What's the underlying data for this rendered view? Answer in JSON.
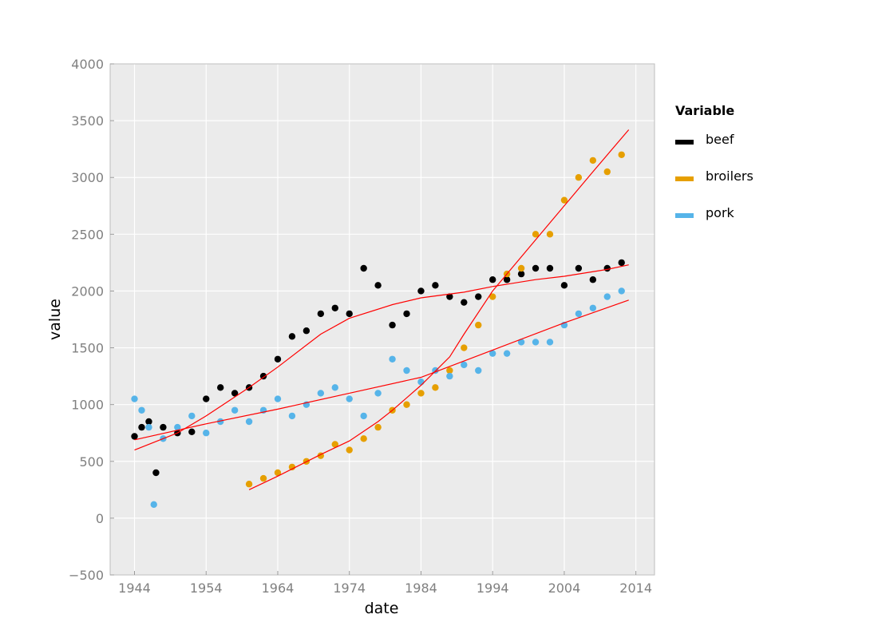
{
  "chart_data": {
    "type": "scatter",
    "title": "",
    "xlabel": "date",
    "ylabel": "value",
    "xlim": [
      1940.6,
      2016.6
    ],
    "ylim": [
      -500,
      4000
    ],
    "xticks": [
      1944,
      1954,
      1964,
      1974,
      1984,
      1994,
      2004,
      2014
    ],
    "yticks": [
      -500,
      0,
      500,
      1000,
      1500,
      2000,
      2500,
      3000,
      3500,
      4000
    ],
    "ytick_labels": [
      "−500",
      "0",
      "500",
      "1000",
      "1500",
      "2000",
      "2500",
      "3000",
      "3500",
      "4000"
    ],
    "grid": true,
    "legend": {
      "title": "Variable",
      "placement": "outside-right"
    },
    "trend_color": "#ff0000",
    "series": [
      {
        "name": "beef",
        "color": "#000000",
        "approx_points": [
          [
            1944,
            720
          ],
          [
            1945,
            800
          ],
          [
            1946,
            850
          ],
          [
            1947,
            400
          ],
          [
            1948,
            800
          ],
          [
            1950,
            750
          ],
          [
            1952,
            760
          ],
          [
            1954,
            1050
          ],
          [
            1956,
            1150
          ],
          [
            1958,
            1100
          ],
          [
            1960,
            1150
          ],
          [
            1962,
            1250
          ],
          [
            1964,
            1400
          ],
          [
            1966,
            1600
          ],
          [
            1968,
            1650
          ],
          [
            1970,
            1800
          ],
          [
            1972,
            1850
          ],
          [
            1974,
            1800
          ],
          [
            1976,
            2200
          ],
          [
            1978,
            2050
          ],
          [
            1980,
            1700
          ],
          [
            1982,
            1800
          ],
          [
            1984,
            2000
          ],
          [
            1986,
            2050
          ],
          [
            1988,
            1950
          ],
          [
            1990,
            1900
          ],
          [
            1992,
            1950
          ],
          [
            1994,
            2100
          ],
          [
            1996,
            2100
          ],
          [
            1998,
            2150
          ],
          [
            2000,
            2200
          ],
          [
            2002,
            2200
          ],
          [
            2004,
            2050
          ],
          [
            2006,
            2200
          ],
          [
            2008,
            2100
          ],
          [
            2010,
            2200
          ],
          [
            2012,
            2250
          ]
        ],
        "trend": [
          [
            1944,
            600
          ],
          [
            1950,
            750
          ],
          [
            1954,
            900
          ],
          [
            1960,
            1150
          ],
          [
            1964,
            1330
          ],
          [
            1970,
            1620
          ],
          [
            1974,
            1760
          ],
          [
            1980,
            1880
          ],
          [
            1984,
            1940
          ],
          [
            1990,
            1990
          ],
          [
            1994,
            2040
          ],
          [
            2000,
            2100
          ],
          [
            2004,
            2130
          ],
          [
            2010,
            2190
          ],
          [
            2013,
            2230
          ]
        ]
      },
      {
        "name": "broilers",
        "color": "#e69f00",
        "approx_points": [
          [
            1960,
            300
          ],
          [
            1962,
            350
          ],
          [
            1964,
            400
          ],
          [
            1966,
            450
          ],
          [
            1968,
            500
          ],
          [
            1970,
            550
          ],
          [
            1972,
            650
          ],
          [
            1974,
            600
          ],
          [
            1976,
            700
          ],
          [
            1978,
            800
          ],
          [
            1980,
            950
          ],
          [
            1982,
            1000
          ],
          [
            1984,
            1100
          ],
          [
            1986,
            1150
          ],
          [
            1988,
            1300
          ],
          [
            1990,
            1500
          ],
          [
            1992,
            1700
          ],
          [
            1994,
            1950
          ],
          [
            1996,
            2150
          ],
          [
            1998,
            2200
          ],
          [
            2000,
            2500
          ],
          [
            2002,
            2500
          ],
          [
            2004,
            2800
          ],
          [
            2006,
            3000
          ],
          [
            2008,
            3150
          ],
          [
            2010,
            3050
          ],
          [
            2012,
            3200
          ]
        ],
        "trend": [
          [
            1960,
            250
          ],
          [
            1964,
            370
          ],
          [
            1970,
            560
          ],
          [
            1974,
            680
          ],
          [
            1978,
            850
          ],
          [
            1980,
            950
          ],
          [
            1984,
            1170
          ],
          [
            1988,
            1420
          ],
          [
            1990,
            1620
          ],
          [
            1994,
            2000
          ],
          [
            2000,
            2450
          ],
          [
            2004,
            2750
          ],
          [
            2008,
            3050
          ],
          [
            2013,
            3420
          ]
        ]
      },
      {
        "name": "pork",
        "color": "#56b4e9",
        "approx_points": [
          [
            1944,
            1050
          ],
          [
            1945,
            950
          ],
          [
            1946,
            800
          ],
          [
            1946.7,
            120
          ],
          [
            1948,
            700
          ],
          [
            1950,
            800
          ],
          [
            1952,
            900
          ],
          [
            1954,
            750
          ],
          [
            1956,
            850
          ],
          [
            1958,
            950
          ],
          [
            1960,
            850
          ],
          [
            1962,
            950
          ],
          [
            1964,
            1050
          ],
          [
            1966,
            900
          ],
          [
            1968,
            1000
          ],
          [
            1970,
            1100
          ],
          [
            1972,
            1150
          ],
          [
            1974,
            1050
          ],
          [
            1976,
            900
          ],
          [
            1978,
            1100
          ],
          [
            1980,
            1400
          ],
          [
            1982,
            1300
          ],
          [
            1984,
            1200
          ],
          [
            1986,
            1300
          ],
          [
            1988,
            1250
          ],
          [
            1990,
            1350
          ],
          [
            1992,
            1300
          ],
          [
            1994,
            1450
          ],
          [
            1996,
            1450
          ],
          [
            1998,
            1550
          ],
          [
            2000,
            1550
          ],
          [
            2002,
            1550
          ],
          [
            2004,
            1700
          ],
          [
            2006,
            1800
          ],
          [
            2008,
            1850
          ],
          [
            2010,
            1950
          ],
          [
            2012,
            2000
          ]
        ],
        "trend": [
          [
            1944,
            690
          ],
          [
            1954,
            830
          ],
          [
            1964,
            960
          ],
          [
            1974,
            1100
          ],
          [
            1984,
            1240
          ],
          [
            1994,
            1480
          ],
          [
            2004,
            1720
          ],
          [
            2013,
            1920
          ]
        ]
      }
    ]
  }
}
